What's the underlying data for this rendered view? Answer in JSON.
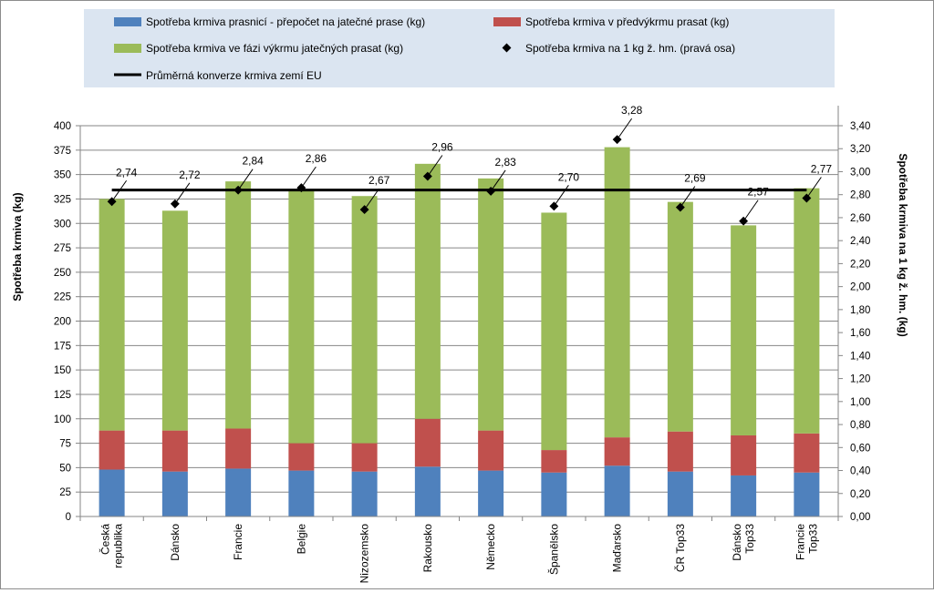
{
  "chart_data": {
    "type": "bar",
    "stacked": true,
    "categories": [
      "Česká republika",
      "Dánsko",
      "Francie",
      "Belgie",
      "Nizozemsko",
      "Rakousko",
      "Německo",
      "Španělsko",
      "Maďarsko",
      "ČR Top33",
      "Dánsko Top33",
      "Francie Top33"
    ],
    "category_lines": [
      [
        "Česká",
        "republika"
      ],
      [
        "Dánsko"
      ],
      [
        "Francie"
      ],
      [
        "Belgie"
      ],
      [
        "Nizozemsko"
      ],
      [
        "Rakousko"
      ],
      [
        "Německo"
      ],
      [
        "Španělsko"
      ],
      [
        "Maďarsko"
      ],
      [
        "ČR Top33"
      ],
      [
        "Dánsko",
        "Top33"
      ],
      [
        "Francie",
        "Top33"
      ]
    ],
    "series": [
      {
        "name": "Spotřeba krmiva prasnicí - přepočet na jatečné prase (kg)",
        "color": "#4f81bd",
        "values": [
          48,
          46,
          49,
          47,
          46,
          51,
          47,
          45,
          52,
          46,
          42,
          45
        ]
      },
      {
        "name": "Spotřeba krmiva v předvýkrmu prasat (kg)",
        "color": "#c0504d",
        "values": [
          40,
          42,
          41,
          28,
          29,
          49,
          41,
          23,
          29,
          41,
          41,
          40
        ]
      },
      {
        "name": "Spotřeba krmiva ve fázi výkrmu jatečných prasat (kg)",
        "color": "#9bbb59",
        "values": [
          237,
          225,
          253,
          258,
          253,
          261,
          258,
          243,
          297,
          235,
          215,
          251
        ]
      }
    ],
    "ratio_series": {
      "name": "Spotřeba krmiva na 1 kg ž. hm. (pravá osa)",
      "color": "#000000",
      "values": [
        2.74,
        2.72,
        2.84,
        2.86,
        2.67,
        2.96,
        2.83,
        2.7,
        3.28,
        2.69,
        2.57,
        2.77
      ],
      "labels": [
        "2,74",
        "2,72",
        "2,84",
        "2,86",
        "2,67",
        "2,96",
        "2,83",
        "2,70",
        "3,28",
        "2,69",
        "2,57",
        "2,77"
      ]
    },
    "average_line": {
      "name": "Průměrná konverze krmiva zemí EU",
      "value": 2.84,
      "color": "#000000"
    },
    "ylabel": "Spotřeba krmiva (kg)",
    "y2label": "Spotřeba krmiva na 1 kg ž. hm. (kg)",
    "ylim": [
      0,
      400
    ],
    "y_ticks": [
      0,
      25,
      50,
      75,
      100,
      125,
      150,
      175,
      200,
      225,
      250,
      275,
      300,
      325,
      350,
      375,
      400
    ],
    "y2lim": [
      0,
      3.4
    ],
    "y2_ticks": [
      "0,00",
      "0,20",
      "0,40",
      "0,60",
      "0,80",
      "1,00",
      "1,20",
      "1,40",
      "1,60",
      "1,80",
      "2,00",
      "2,20",
      "2,40",
      "2,60",
      "2,80",
      "3,00",
      "3,20",
      "3,40"
    ],
    "grid": true,
    "legend_position": "top"
  }
}
